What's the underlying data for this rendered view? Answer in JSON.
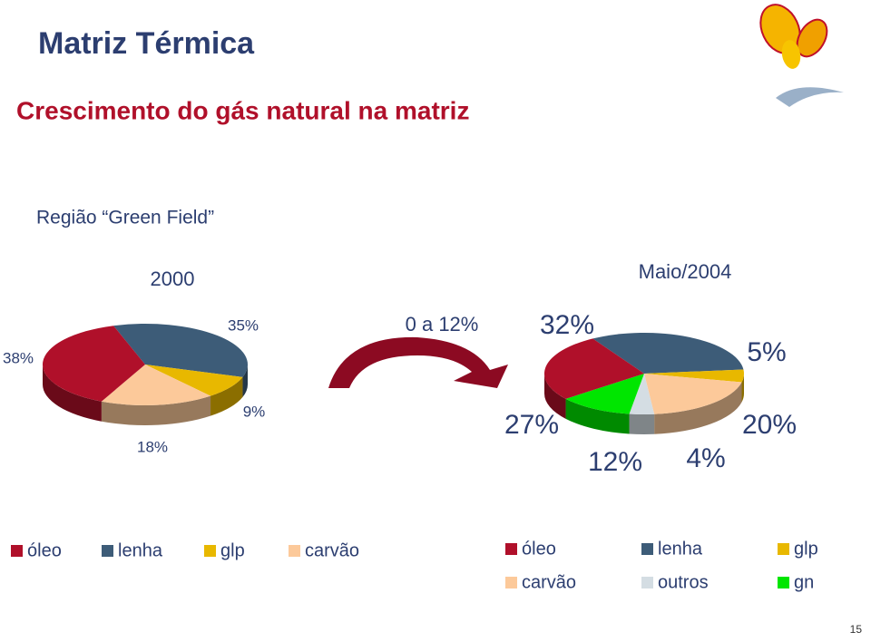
{
  "title": "Matriz Térmica",
  "subtitle": "Crescimento do gás natural na matriz",
  "region": "Região “Green Field”",
  "arrow_label": "0 a 12%",
  "page_number": "15",
  "chart_data": [
    {
      "type": "pie",
      "title": "2000",
      "categories": [
        "lenha",
        "glp",
        "carvão",
        "óleo"
      ],
      "legend_order": [
        "óleo",
        "lenha",
        "glp",
        "carvão"
      ],
      "values": [
        35,
        9,
        18,
        38
      ],
      "value_labels": [
        "35%",
        "9%",
        "18%",
        "38%"
      ],
      "colors": [
        "#3d5c78",
        "#e8b800",
        "#fcc99a",
        "#b0102a"
      ]
    },
    {
      "type": "pie",
      "title": "Maio/2004",
      "categories": [
        "lenha",
        "glp",
        "carvão",
        "outros",
        "gn",
        "óleo"
      ],
      "legend_order": [
        "óleo",
        "lenha",
        "glp",
        "carvão",
        "outros",
        "gn"
      ],
      "values": [
        32,
        5,
        20,
        4,
        12,
        27
      ],
      "value_labels": [
        "32%",
        "5%",
        "20%",
        "4%",
        "12%",
        "27%"
      ],
      "colors": [
        "#3d5c78",
        "#e8b800",
        "#fcc99a",
        "#d4dde3",
        "#00e600",
        "#b0102a"
      ]
    }
  ]
}
